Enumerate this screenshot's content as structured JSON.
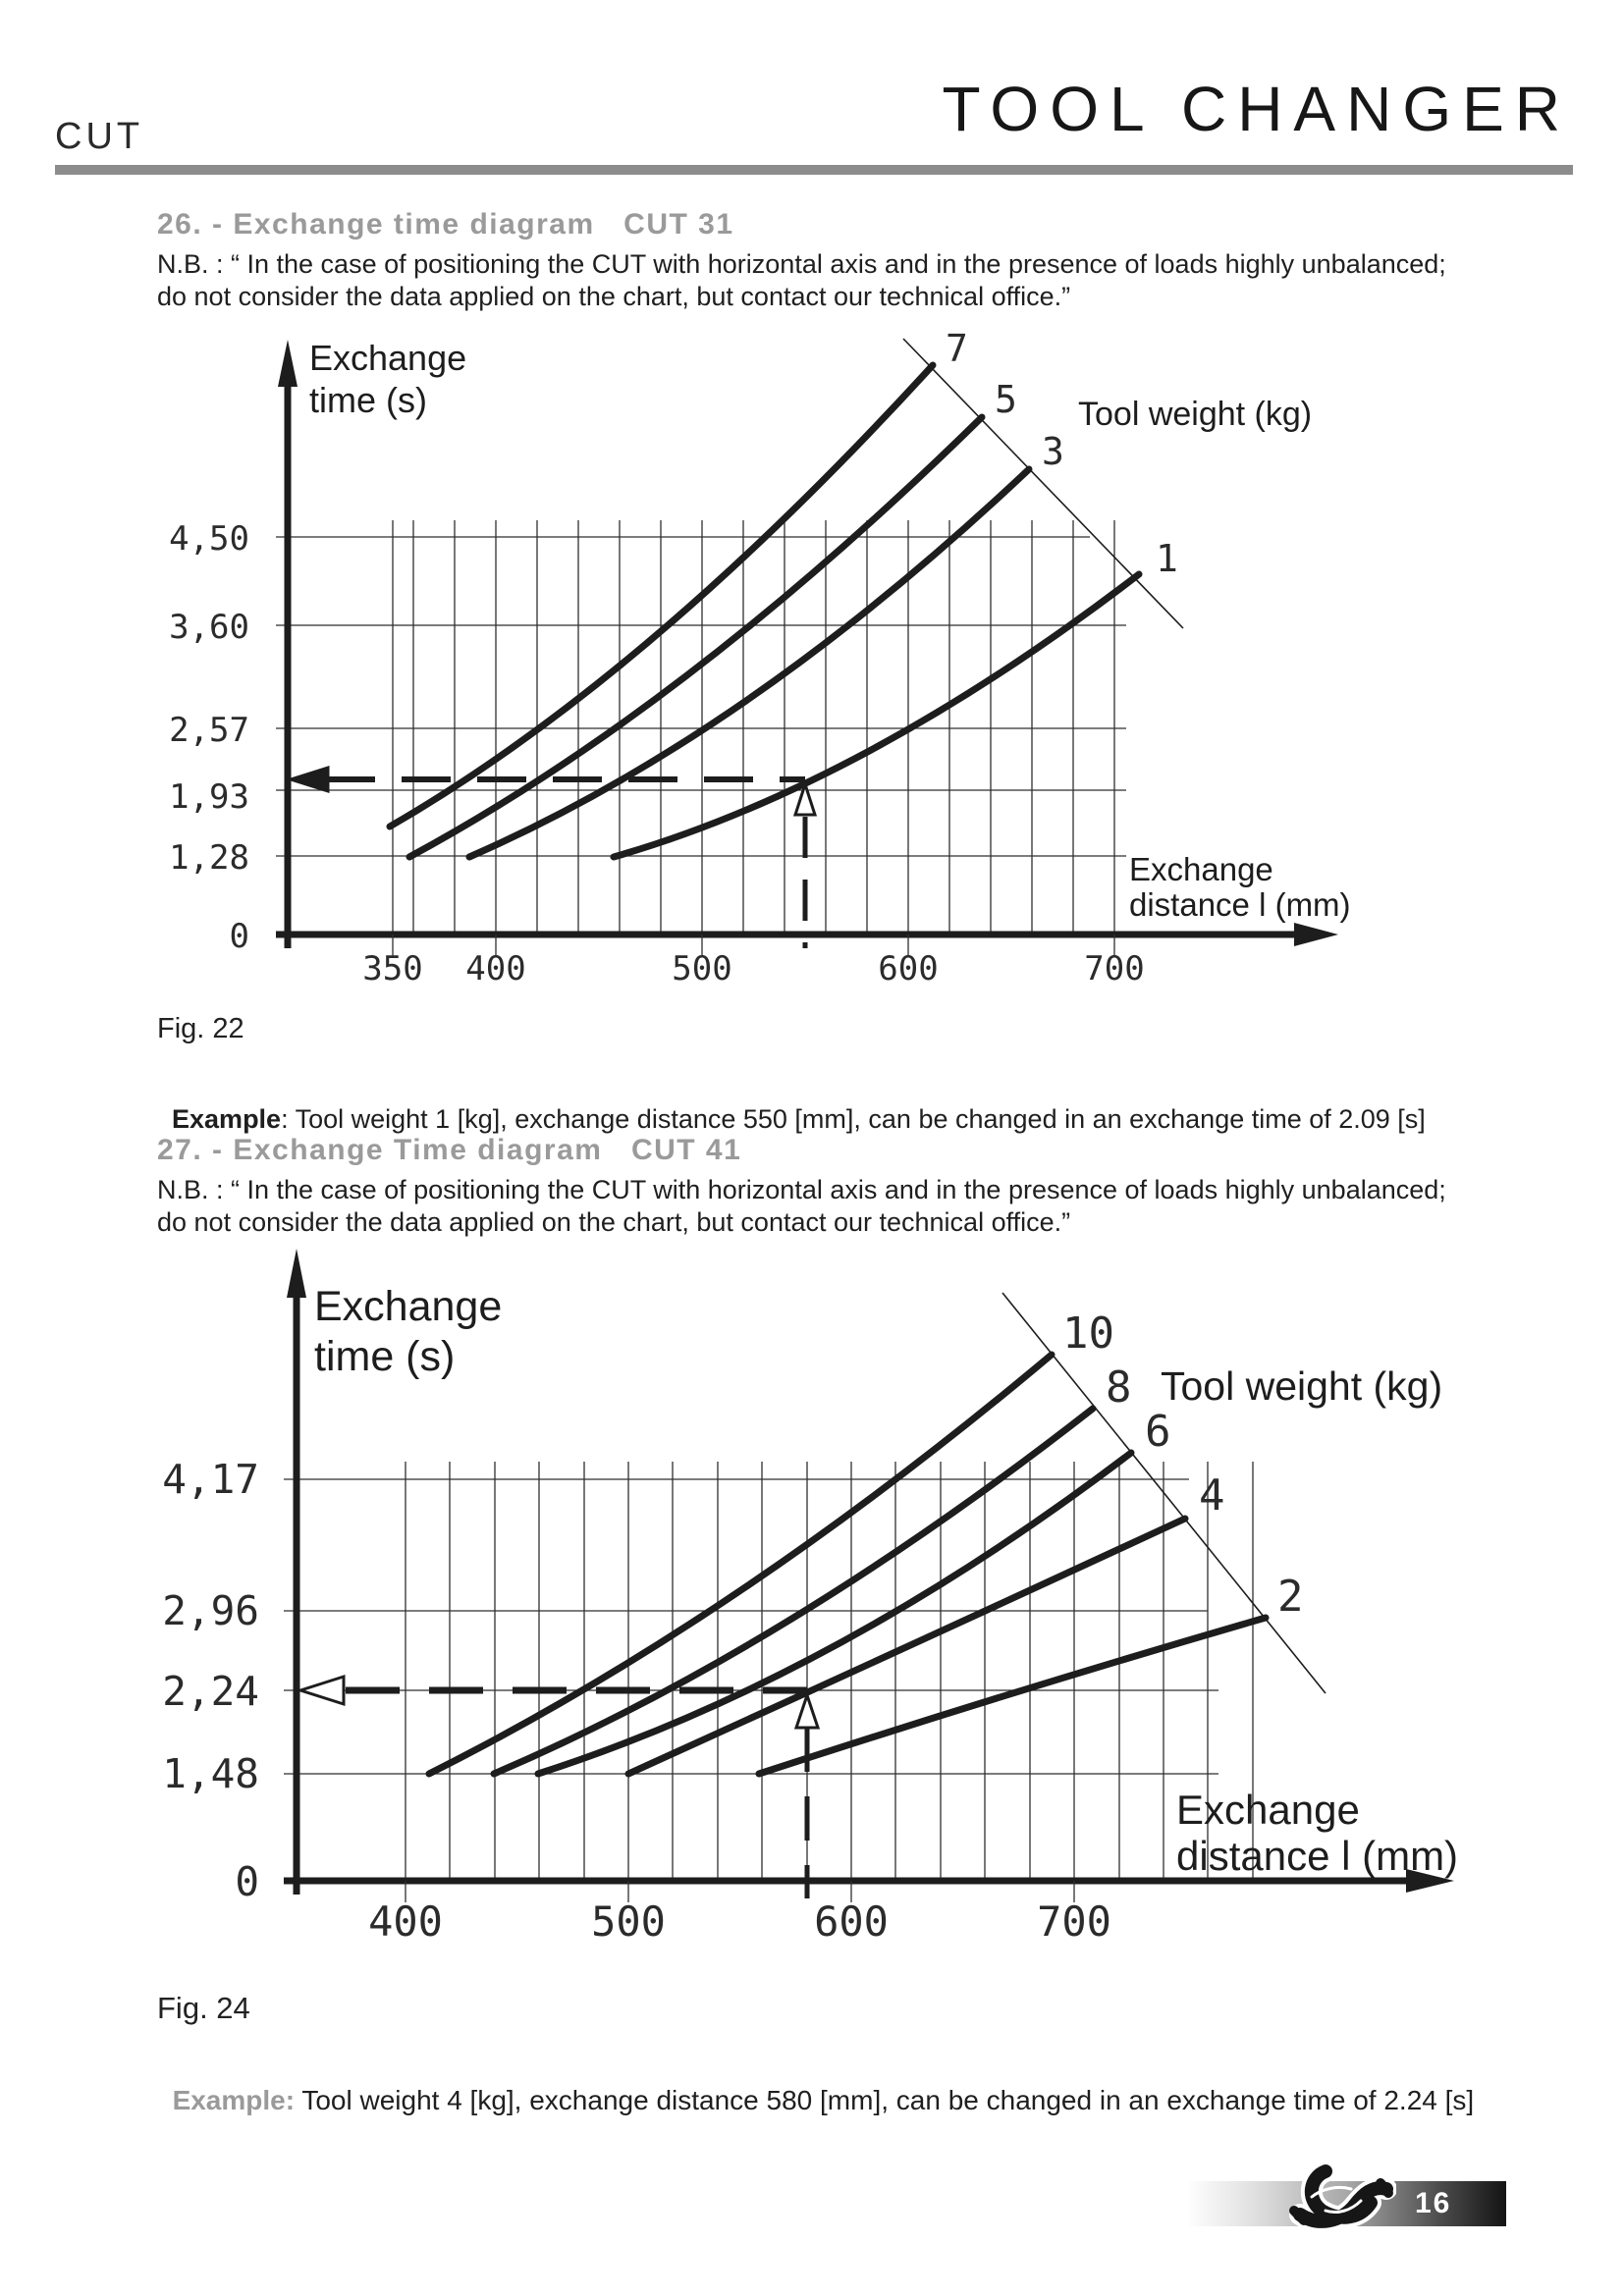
{
  "page": {
    "header_left": "CUT",
    "header_right": "TOOL CHANGER",
    "page_number": "16"
  },
  "section26": {
    "heading": "26. - Exchange time diagram   CUT 31",
    "nb_line1": "N.B. : “ In the case of positioning the CUT with horizontal axis and in the presence of loads highly unbalanced;",
    "nb_line2": "do not consider the data applied on the chart, but contact our technical office.”",
    "fig_caption": "Fig. 22",
    "example_label": "Example",
    "example_text": ": Tool weight 1 [kg], exchange distance 550 [mm], can be changed in an exchange time of 2.09 [s]"
  },
  "section27": {
    "heading": "27. - Exchange Time diagram   CUT 41",
    "nb_line1": "N.B. : “ In the case of positioning the CUT with horizontal axis and in the presence of loads highly unbalanced;",
    "nb_line2": "do not consider the data applied on the chart, but contact our technical office.”",
    "fig_caption": "Fig. 24",
    "example_label": "Example",
    "example_text": ": Tool weight 4 [kg], exchange distance 580 [mm], can be changed in an exchange time of 2.24 [s]"
  },
  "chart_data": [
    {
      "id": "cut31",
      "type": "line",
      "title": "Exchange time diagram CUT 31",
      "ylabel_line1": "Exchange",
      "ylabel_line2": "time  (s)",
      "xlabel_line1": "Exchange",
      "xlabel_line2": "distance  l (mm)",
      "legend_title": "Tool weight  (kg)",
      "xlabel_units": "mm",
      "ylabel_units": "s",
      "x_ticks": [
        "350",
        "400",
        "500",
        "600",
        "700"
      ],
      "y_ticks": [
        "4,50",
        "3,60",
        "2,57",
        "1,93",
        "1,28",
        "0"
      ],
      "xlim": [
        330,
        730
      ],
      "grid": true,
      "legend_position": "top-right-diagonal",
      "series": [
        {
          "name": "7",
          "tool_weight_kg": 7,
          "points": [
            [
              350,
              1.6
            ],
            [
              400,
              2.0
            ],
            [
              450,
              2.6
            ],
            [
              500,
              3.4
            ],
            [
              550,
              4.4
            ],
            [
              612,
              6.2
            ]
          ]
        },
        {
          "name": "5",
          "tool_weight_kg": 5,
          "points": [
            [
              360,
              1.28
            ],
            [
              400,
              1.6
            ],
            [
              450,
              2.1
            ],
            [
              500,
              2.8
            ],
            [
              550,
              3.6
            ],
            [
              600,
              4.7
            ],
            [
              636,
              5.7
            ]
          ]
        },
        {
          "name": "3",
          "tool_weight_kg": 3,
          "points": [
            [
              388,
              1.28
            ],
            [
              450,
              1.8
            ],
            [
              500,
              2.3
            ],
            [
              550,
              3.0
            ],
            [
              600,
              3.9
            ],
            [
              659,
              5.2
            ]
          ]
        },
        {
          "name": "1",
          "tool_weight_kg": 1,
          "points": [
            [
              457,
              1.28
            ],
            [
              500,
              1.5
            ],
            [
              550,
              2.09
            ],
            [
              600,
              2.7
            ],
            [
              650,
              3.4
            ],
            [
              712,
              4.1
            ]
          ]
        }
      ],
      "example_point": {
        "distance_mm": 550,
        "time_s": 2.09,
        "tool_weight_kg": 1
      }
    },
    {
      "id": "cut41",
      "type": "line",
      "title": "Exchange Time diagram CUT 41",
      "ylabel_line1": "Exchange",
      "ylabel_line2": "time  (s)",
      "xlabel_line1": "Exchange",
      "xlabel_line2": "distance  l (mm)",
      "legend_title": "Tool weight  (kg)",
      "xlabel_units": "mm",
      "ylabel_units": "s",
      "x_ticks": [
        "400",
        "500",
        "600",
        "700"
      ],
      "y_ticks": [
        "4,17",
        "2,96",
        "2,24",
        "1,48",
        "0"
      ],
      "xlim": [
        350,
        790
      ],
      "grid": true,
      "legend_position": "top-right-diagonal",
      "series": [
        {
          "name": "10",
          "tool_weight_kg": 10,
          "points": [
            [
              411,
              1.48
            ],
            [
              450,
              1.9
            ],
            [
              500,
              2.5
            ],
            [
              550,
              3.2
            ],
            [
              600,
              4.0
            ],
            [
              690,
              5.3
            ]
          ]
        },
        {
          "name": "8",
          "tool_weight_kg": 8,
          "points": [
            [
              440,
              1.48
            ],
            [
              500,
              2.0
            ],
            [
              550,
              2.6
            ],
            [
              600,
              3.3
            ],
            [
              708,
              4.8
            ]
          ]
        },
        {
          "name": "6",
          "tool_weight_kg": 6,
          "points": [
            [
              459,
              1.48
            ],
            [
              520,
              2.0
            ],
            [
              580,
              2.6
            ],
            [
              650,
              3.4
            ],
            [
              726,
              4.4
            ]
          ]
        },
        {
          "name": "4",
          "tool_weight_kg": 4,
          "points": [
            [
              500,
              1.48
            ],
            [
              580,
              2.24
            ],
            [
              650,
              2.8
            ],
            [
              750,
              3.8
            ]
          ]
        },
        {
          "name": "2",
          "tool_weight_kg": 2,
          "points": [
            [
              559,
              1.48
            ],
            [
              640,
              1.9
            ],
            [
              720,
              2.4
            ],
            [
              786,
              2.9
            ]
          ]
        }
      ],
      "example_point": {
        "distance_mm": 580,
        "time_s": 2.24,
        "tool_weight_kg": 4
      }
    }
  ]
}
